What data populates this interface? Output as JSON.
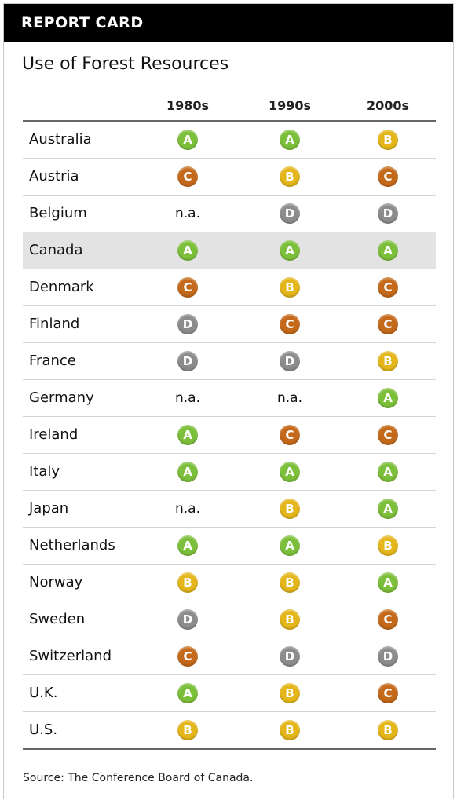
{
  "header": {
    "title": "REPORT CARD"
  },
  "subtitle": "Use of Forest Resources",
  "source": "Source: The Conference Board of Canada.",
  "colors": {
    "A": "#7cbf3a",
    "B": "#e4b61a",
    "C": "#c4691a",
    "D": "#8c8c8c"
  },
  "chart_data": {
    "type": "table",
    "title": "Use of Forest Resources",
    "columns": [
      "1980s",
      "1990s",
      "2000s"
    ],
    "highlight_row": "Canada",
    "rows": [
      {
        "country": "Australia",
        "grades": [
          "A",
          "A",
          "B"
        ]
      },
      {
        "country": "Austria",
        "grades": [
          "C",
          "B",
          "C"
        ]
      },
      {
        "country": "Belgium",
        "grades": [
          "n.a.",
          "D",
          "D"
        ]
      },
      {
        "country": "Canada",
        "grades": [
          "A",
          "A",
          "A"
        ]
      },
      {
        "country": "Denmark",
        "grades": [
          "C",
          "B",
          "C"
        ]
      },
      {
        "country": "Finland",
        "grades": [
          "D",
          "C",
          "C"
        ]
      },
      {
        "country": "France",
        "grades": [
          "D",
          "D",
          "B"
        ]
      },
      {
        "country": "Germany",
        "grades": [
          "n.a.",
          "n.a.",
          "A"
        ]
      },
      {
        "country": "Ireland",
        "grades": [
          "A",
          "C",
          "C"
        ]
      },
      {
        "country": "Italy",
        "grades": [
          "A",
          "A",
          "A"
        ]
      },
      {
        "country": "Japan",
        "grades": [
          "n.a.",
          "B",
          "A"
        ]
      },
      {
        "country": "Netherlands",
        "grades": [
          "A",
          "A",
          "B"
        ]
      },
      {
        "country": "Norway",
        "grades": [
          "B",
          "B",
          "A"
        ]
      },
      {
        "country": "Sweden",
        "grades": [
          "D",
          "B",
          "C"
        ]
      },
      {
        "country": "Switzerland",
        "grades": [
          "C",
          "D",
          "D"
        ]
      },
      {
        "country": "U.K.",
        "grades": [
          "A",
          "B",
          "C"
        ]
      },
      {
        "country": "U.S.",
        "grades": [
          "B",
          "B",
          "B"
        ]
      }
    ]
  }
}
